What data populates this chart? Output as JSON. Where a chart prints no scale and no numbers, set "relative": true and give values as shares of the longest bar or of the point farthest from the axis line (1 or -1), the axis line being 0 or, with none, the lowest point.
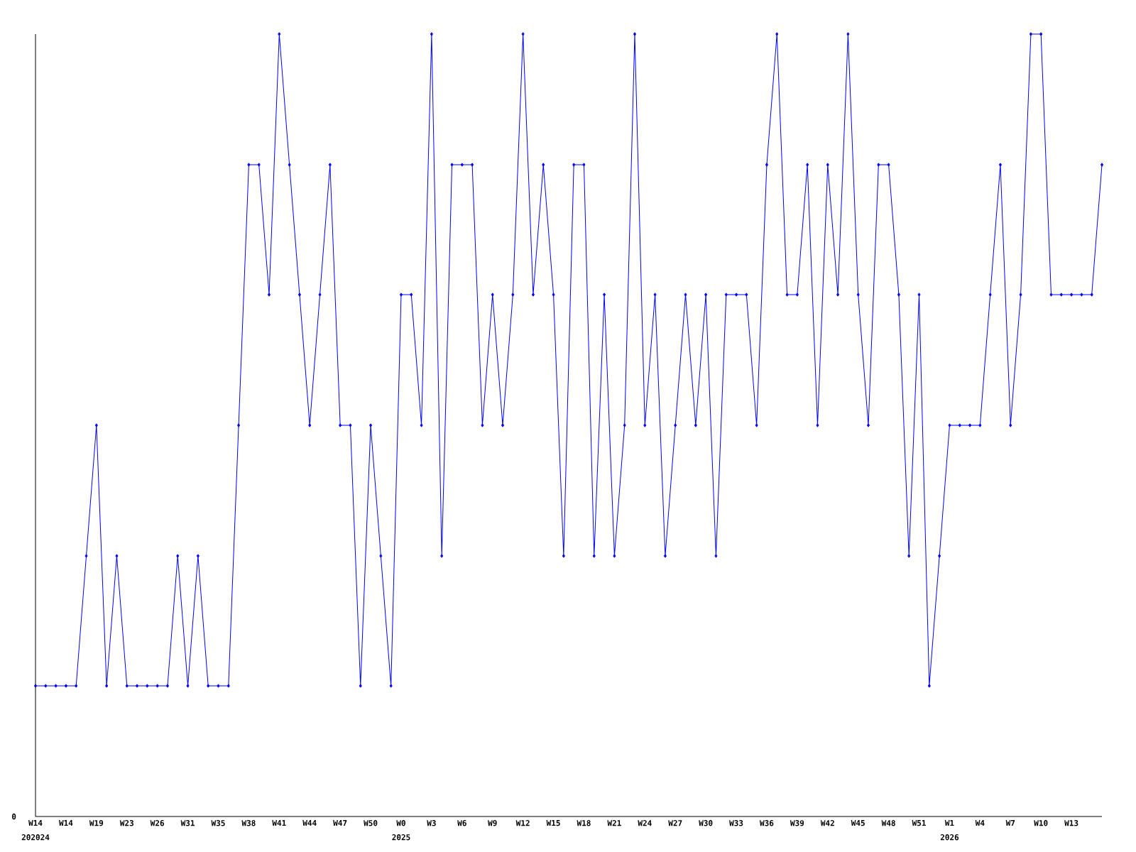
{
  "chart_data": {
    "type": "line",
    "relative": true,
    "marker": "diamond",
    "line_style": "solid",
    "color": "#0000ff",
    "categories": [
      "W14",
      null,
      null,
      "W14",
      null,
      null,
      "W19",
      null,
      null,
      "W23",
      null,
      null,
      "W26",
      null,
      null,
      "W31",
      null,
      null,
      "W35",
      null,
      null,
      "W38",
      null,
      null,
      "W41",
      null,
      null,
      "W44",
      null,
      null,
      "W47",
      null,
      null,
      "W50",
      null,
      null,
      "W0",
      null,
      null,
      "W3",
      null,
      null,
      "W6",
      null,
      null,
      "W9",
      null,
      null,
      "W12",
      null,
      null,
      "W15",
      null,
      null,
      "W18",
      null,
      null,
      "W21",
      null,
      null,
      "W24",
      null,
      null,
      "W27",
      null,
      null,
      "W30",
      null,
      null,
      "W33",
      null,
      null,
      "W36",
      null,
      null,
      "W39",
      null,
      null,
      "W42",
      null,
      null,
      "W45",
      null,
      null,
      "W48",
      null,
      null,
      "W51",
      null,
      null,
      "W1",
      null,
      null,
      "W4",
      null,
      null,
      "W7",
      null,
      null,
      "W10",
      null,
      null,
      "W13",
      null,
      null,
      null
    ],
    "values": [
      0.167,
      0.167,
      0.167,
      0.167,
      0.167,
      0.333,
      0.5,
      0.167,
      0.333,
      0.167,
      0.167,
      0.167,
      0.167,
      0.167,
      0.333,
      0.167,
      0.333,
      0.167,
      0.167,
      0.167,
      0.5,
      0.833,
      0.833,
      0.667,
      1,
      0.833,
      0.667,
      0.5,
      0.667,
      0.833,
      0.5,
      0.5,
      0.167,
      0.5,
      0.333,
      0.167,
      0.667,
      0.667,
      0.5,
      1,
      0.333,
      0.833,
      0.833,
      0.833,
      0.5,
      0.667,
      0.5,
      0.667,
      1,
      0.667,
      0.833,
      0.667,
      0.333,
      0.833,
      0.833,
      0.333,
      0.667,
      0.333,
      0.5,
      1,
      0.5,
      0.667,
      0.333,
      0.5,
      0.667,
      0.5,
      0.667,
      0.333,
      0.667,
      0.667,
      0.667,
      0.5,
      0.833,
      1,
      0.667,
      0.667,
      0.833,
      0.5,
      0.833,
      0.667,
      1,
      0.667,
      0.5,
      0.833,
      0.833,
      0.667,
      0.333,
      0.667,
      0.167,
      0.333,
      0.5,
      0.5,
      0.5,
      0.5,
      0.667,
      0.833,
      0.5,
      0.667,
      1,
      1,
      0.667,
      0.667,
      0.667,
      0.667,
      0.667,
      0.833
    ],
    "annotations": [
      "0",
      "202024",
      "2025",
      "2026"
    ]
  }
}
